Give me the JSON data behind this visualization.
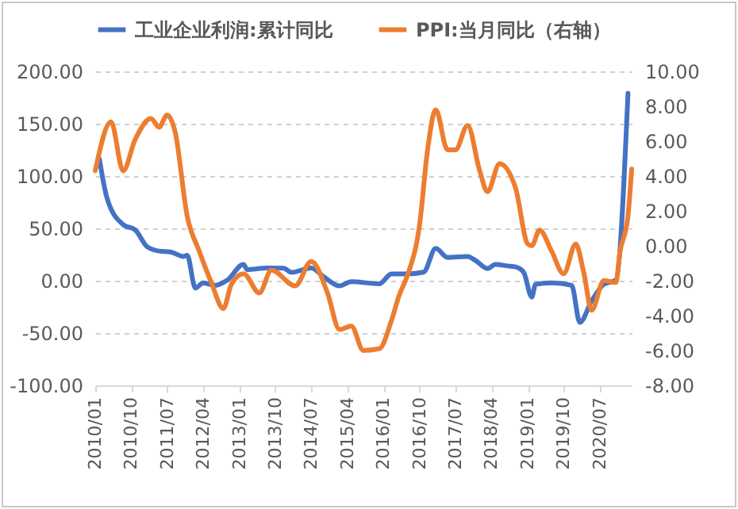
{
  "chart_data": {
    "type": "line",
    "legend": "top",
    "grid": "y",
    "line_style": "solid",
    "xlim": [
      "2010-01",
      "2021-03"
    ],
    "xticks": [
      {
        "value": "2010-01",
        "label": "2010/01"
      },
      {
        "value": "2010-10",
        "label": "2010/10"
      },
      {
        "value": "2011-07",
        "label": "2011/07"
      },
      {
        "value": "2012-04",
        "label": "2012/04"
      },
      {
        "value": "2013-01",
        "label": "2013/01"
      },
      {
        "value": "2013-10",
        "label": "2013/10"
      },
      {
        "value": "2014-07",
        "label": "2014/07"
      },
      {
        "value": "2015-04",
        "label": "2015/04"
      },
      {
        "value": "2016-01",
        "label": "2016/01"
      },
      {
        "value": "2016-10",
        "label": "2016/10"
      },
      {
        "value": "2017-07",
        "label": "2017/07"
      },
      {
        "value": "2018-04",
        "label": "2018/04"
      },
      {
        "value": "2019-01",
        "label": "2019/01"
      },
      {
        "value": "2019-10",
        "label": "2019/10"
      },
      {
        "value": "2020-07",
        "label": "2020/07"
      }
    ],
    "ylim": [
      -100,
      200
    ],
    "yticks": [
      {
        "value": -100,
        "label": "-100.00"
      },
      {
        "value": -50,
        "label": "-50.00"
      },
      {
        "value": 0,
        "label": "0.00"
      },
      {
        "value": 50,
        "label": "50.00"
      },
      {
        "value": 100,
        "label": "100.00"
      },
      {
        "value": 150,
        "label": "150.00"
      },
      {
        "value": 200,
        "label": "200.00"
      }
    ],
    "y2lim": [
      -8,
      10
    ],
    "y2ticks": [
      {
        "value": -8,
        "label": "-8.00"
      },
      {
        "value": -6,
        "label": "-6.00"
      },
      {
        "value": -4,
        "label": "-4.00"
      },
      {
        "value": -2,
        "label": "-2.00"
      },
      {
        "value": 0,
        "label": "0.00"
      },
      {
        "value": 2,
        "label": "2.00"
      },
      {
        "value": 4,
        "label": "4.00"
      },
      {
        "value": 6,
        "label": "6.00"
      },
      {
        "value": 8,
        "label": "8.00"
      },
      {
        "value": 10,
        "label": "10.00"
      }
    ],
    "series": [
      {
        "name": "工业企业利润:累计同比",
        "color": "#4472c4",
        "x": [
          "2010-02",
          "2010-04",
          "2010-08",
          "2010-11",
          "2011-02",
          "2011-05",
          "2011-08",
          "2011-11",
          "2011-12",
          "2012-02",
          "2012-04",
          "2012-07",
          "2012-10",
          "2013-02",
          "2013-03",
          "2013-08",
          "2013-12",
          "2014-02",
          "2014-07",
          "2014-10",
          "2015-02",
          "2015-05",
          "2015-12",
          "2016-03",
          "2016-07",
          "2016-11",
          "2017-02",
          "2017-05",
          "2017-10",
          "2017-12",
          "2018-03",
          "2018-05",
          "2018-08",
          "2018-10",
          "2018-12",
          "2019-02",
          "2019-03",
          "2019-07",
          "2019-12",
          "2020-02",
          "2020-05",
          "2020-08",
          "2020-11",
          "2021-02"
        ],
        "values": [
          116.7,
          78.8,
          53.5,
          48.5,
          32.3,
          28.3,
          27.3,
          23.2,
          24.2,
          -7.1,
          -2.0,
          -4.5,
          0.5,
          15.6,
          10.6,
          12.1,
          12,
          8.0,
          12.1,
          4.0,
          -5.0,
          -1.0,
          -3.0,
          6.5,
          6.5,
          8.1,
          30.8,
          22.2,
          23.2,
          19.2,
          11.6,
          15.6,
          14.1,
          13.1,
          8.1,
          -15.7,
          -3.5,
          -2.0,
          -4.5,
          -39.9,
          -19.3,
          -3.5,
          0.5,
          178.9
        ]
      },
      {
        "name": "PPI:当月同比（右轴）",
        "color": "#ed7d31",
        "axis": "y2",
        "x": [
          "2010-01",
          "2010-05",
          "2010-08",
          "2010-11",
          "2011-03",
          "2011-05",
          "2011-07",
          "2011-09",
          "2011-12",
          "2012-03",
          "2012-06",
          "2012-09",
          "2012-11",
          "2013-02",
          "2013-06",
          "2013-09",
          "2014-03",
          "2014-07",
          "2014-11",
          "2015-02",
          "2015-05",
          "2015-08",
          "2015-12",
          "2016-03",
          "2016-05",
          "2016-07",
          "2016-10",
          "2016-12",
          "2017-02",
          "2017-05",
          "2017-07",
          "2017-10",
          "2018-01",
          "2018-03",
          "2018-06",
          "2018-10",
          "2019-01",
          "2019-02",
          "2019-04",
          "2019-07",
          "2019-10",
          "2020-01",
          "2020-03",
          "2020-05",
          "2020-08",
          "2020-11",
          "2020-12",
          "2021-02",
          "2021-03"
        ],
        "values": [
          4.3,
          7.1,
          4.3,
          6.1,
          7.3,
          6.8,
          7.5,
          6.5,
          1.7,
          -0.3,
          -2.1,
          -3.6,
          -2.2,
          -1.6,
          -2.7,
          -1.4,
          -2.3,
          -0.9,
          -2.7,
          -4.8,
          -4.6,
          -6.0,
          -5.9,
          -4.3,
          -2.8,
          -1.7,
          1.2,
          5.5,
          7.8,
          5.5,
          5.5,
          6.9,
          4.3,
          3.1,
          4.7,
          3.3,
          0.1,
          0.0,
          0.9,
          -0.3,
          -1.6,
          0.1,
          -1.5,
          -3.7,
          -2.0,
          -2.1,
          -0.4,
          1.7,
          4.4
        ]
      }
    ]
  }
}
